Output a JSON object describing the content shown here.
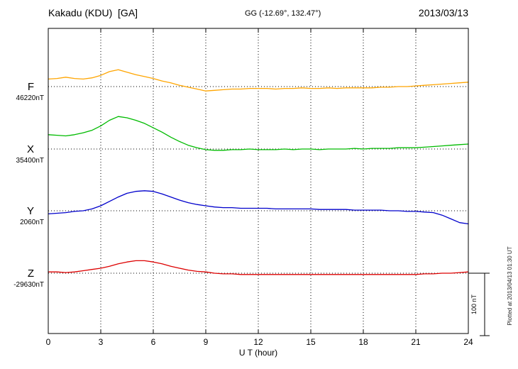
{
  "chart_data": {
    "type": "line",
    "title": "Kakadu (KDU)  [GA]",
    "subtitle": "GG (-12.69°, 132.47°)",
    "date": "2013/03/13",
    "xlabel": "U T (hour)",
    "x_range": [
      0,
      24
    ],
    "x_ticks": [
      0,
      3,
      6,
      9,
      12,
      15,
      18,
      21,
      24
    ],
    "grid": "dotted vertical gridlines every 3 h, dotted horizontal baseline per component",
    "legend_position": "left-margin component labels",
    "scale_bar": {
      "label": "100 nT",
      "nT": 100
    },
    "plotted_note": "Plotted at 2013/04/13 01:30 UT",
    "series": [
      {
        "name": "F",
        "color": "#ffa500",
        "baseline_label": "46220nT",
        "baseline_nT": 46220,
        "x_start": 0,
        "x_step": 0.5,
        "offsets_nT": [
          12,
          13,
          15,
          13,
          12,
          14,
          18,
          24,
          27,
          23,
          19,
          16,
          13,
          9,
          6,
          2,
          -1,
          -4,
          -7,
          -6,
          -5,
          -4,
          -4,
          -3,
          -3,
          -3,
          -4,
          -3,
          -3,
          -2,
          -3,
          -3,
          -2,
          -3,
          -2,
          -2,
          -2,
          -2,
          -1,
          -1,
          0,
          0,
          1,
          2,
          3,
          4,
          5,
          6,
          7
        ]
      },
      {
        "name": "X",
        "color": "#00bb00",
        "baseline_label": "35400nT",
        "baseline_nT": 35400,
        "x_start": 0,
        "x_step": 0.5,
        "offsets_nT": [
          23,
          22,
          21,
          23,
          26,
          30,
          37,
          46,
          52,
          50,
          46,
          41,
          34,
          27,
          19,
          12,
          6,
          2,
          -1,
          -2,
          -2,
          -1,
          -1,
          0,
          -1,
          -1,
          -1,
          0,
          -1,
          0,
          0,
          -1,
          0,
          0,
          0,
          1,
          0,
          1,
          1,
          1,
          2,
          2,
          2,
          3,
          4,
          5,
          6,
          7,
          8
        ]
      },
      {
        "name": "Y",
        "color": "#0000cc",
        "baseline_label": "2060nT",
        "baseline_nT": 2060,
        "x_start": 0,
        "x_step": 0.5,
        "offsets_nT": [
          -5,
          -4,
          -3,
          -1,
          0,
          3,
          8,
          15,
          22,
          28,
          31,
          32,
          31,
          27,
          22,
          17,
          13,
          10,
          8,
          6,
          5,
          5,
          4,
          4,
          4,
          4,
          3,
          3,
          3,
          3,
          3,
          2,
          2,
          2,
          2,
          1,
          1,
          1,
          1,
          0,
          0,
          -1,
          -1,
          -2,
          -3,
          -7,
          -13,
          -19,
          -21
        ]
      },
      {
        "name": "Z",
        "color": "#dd0000",
        "baseline_label": "-29630nT",
        "baseline_nT": -29630,
        "x_start": 0,
        "x_step": 0.5,
        "offsets_nT": [
          2,
          2,
          1,
          2,
          4,
          6,
          8,
          11,
          15,
          18,
          20,
          20,
          18,
          15,
          11,
          8,
          5,
          3,
          2,
          0,
          -1,
          -1,
          -2,
          -2,
          -2,
          -2,
          -2,
          -2,
          -2,
          -2,
          -2,
          -2,
          -2,
          -2,
          -2,
          -2,
          -2,
          -2,
          -2,
          -2,
          -2,
          -2,
          -2,
          -1,
          -1,
          0,
          0,
          1,
          2
        ]
      }
    ]
  }
}
